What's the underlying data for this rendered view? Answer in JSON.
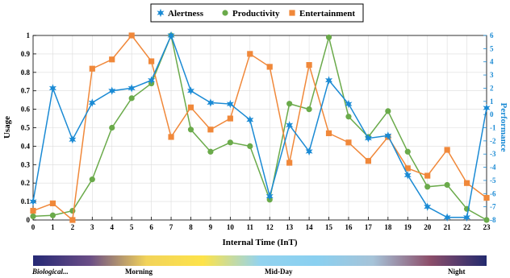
{
  "chart_data": {
    "type": "line",
    "x": [
      0,
      1,
      2,
      3,
      4,
      5,
      6,
      7,
      8,
      9,
      10,
      11,
      12,
      13,
      14,
      15,
      16,
      17,
      18,
      19,
      20,
      21,
      22,
      23
    ],
    "xlabel": "Internal Time (InT)",
    "ylabel": "Usage",
    "ylabel_right": "Performance",
    "ylim": [
      0,
      1
    ],
    "ylim_right": [
      -8,
      6
    ],
    "yticks": [
      "0",
      "0.1",
      "0.2",
      "0.3",
      "0.4",
      "0.5",
      "0.6",
      "0.7",
      "0.8",
      "0.9",
      "1"
    ],
    "yticks_right": [
      "-8",
      "-7",
      "-6",
      "-5",
      "-4",
      "-3",
      "-2",
      "-1",
      "0",
      "1",
      "2",
      "3",
      "4",
      "5",
      "6"
    ],
    "grid": true,
    "legend_position": "top-center",
    "series": [
      {
        "name": "Alertness",
        "axis": "right",
        "color": "#1a8ad4",
        "marker": "star",
        "values": [
          -6.6,
          2.0,
          -1.9,
          0.9,
          1.8,
          2.0,
          2.6,
          6.0,
          1.8,
          0.9,
          0.8,
          -0.4,
          -6.2,
          -0.8,
          -2.8,
          2.6,
          0.8,
          -1.8,
          -1.6,
          -4.6,
          -7.0,
          -7.8,
          -7.8,
          0.5
        ]
      },
      {
        "name": "Productivity",
        "axis": "left",
        "color": "#6aaa4a",
        "marker": "circle",
        "values": [
          0.02,
          0.025,
          0.05,
          0.22,
          0.5,
          0.66,
          0.74,
          1.0,
          0.49,
          0.37,
          0.42,
          0.4,
          0.11,
          0.63,
          0.6,
          0.99,
          0.56,
          0.45,
          0.59,
          0.37,
          0.18,
          0.19,
          0.06,
          0.0
        ]
      },
      {
        "name": "Entertainment",
        "axis": "left",
        "color": "#f0883a",
        "marker": "square",
        "values": [
          0.05,
          0.09,
          0.0,
          0.82,
          0.87,
          1.0,
          0.86,
          0.45,
          0.61,
          0.49,
          0.55,
          0.9,
          0.83,
          0.31,
          0.84,
          0.47,
          0.42,
          0.32,
          0.45,
          0.28,
          0.24,
          0.38,
          0.2,
          0.12
        ]
      }
    ],
    "time_band": {
      "labels": [
        "Biological...",
        "Morning",
        "Mid-Day",
        "Night"
      ],
      "colors": [
        "#262975",
        "#6a4d86",
        "#f2d35a",
        "#fde34a",
        "#93d3ef",
        "#8ad0f0",
        "#a6c3d8",
        "#8c4e6a",
        "#232a6e"
      ]
    }
  }
}
